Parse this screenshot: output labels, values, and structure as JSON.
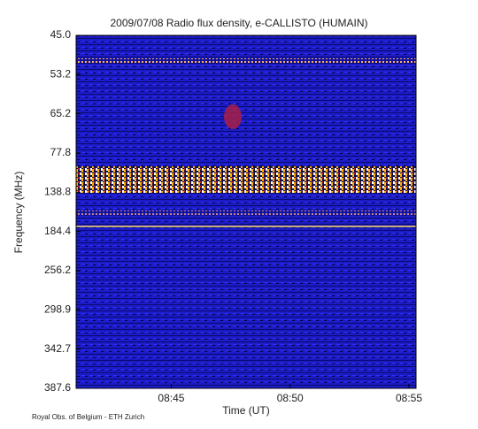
{
  "chart_data": {
    "type": "spectrogram",
    "title": "2009/07/08  Radio flux density, e-CALLISTO (HUMAIN)",
    "ylabel": "Frequency (MHz)",
    "xlabel": "Time (UT)",
    "credit": "Royal Obs. of Belgium - ETH Zurich",
    "ycategories": [
      "45.0",
      "53.2",
      "65.2",
      "77.8",
      "138.8",
      "184.4",
      "256.2",
      "298.9",
      "342.7",
      "387.6"
    ],
    "xlim": [
      "08:41",
      "08:55"
    ],
    "xticks": [
      "08:45",
      "08:50",
      "08:55"
    ],
    "colormap": [
      "#000010",
      "#1010a0",
      "#2828f0",
      "#c02020",
      "#ffb000",
      "#ffffff"
    ]
  }
}
